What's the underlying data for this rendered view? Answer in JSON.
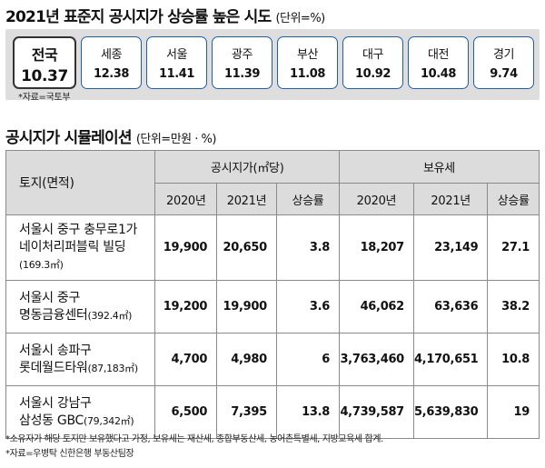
{
  "header": {
    "title": "2021년 표준지 공시지가 상승률 높은 시도",
    "unit": "(단위=%)",
    "source": "*자료=국토부"
  },
  "chart_data": [
    {
      "type": "table",
      "title": "2021년 표준지 공시지가 상승률 높은 시도",
      "unit": "%",
      "categories": [
        "전국",
        "세종",
        "서울",
        "광주",
        "부산",
        "대구",
        "대전",
        "경기"
      ],
      "values": [
        10.37,
        12.38,
        11.41,
        11.39,
        11.08,
        10.92,
        10.48,
        9.74
      ]
    },
    {
      "type": "table",
      "title": "공시지가 시뮬레이션",
      "unit": "(단위=만원 · %)",
      "columns": [
        "토지(면적)",
        "공시지가(㎡당) 2020년",
        "공시지가(㎡당) 2021년",
        "공시지가(㎡당) 상승률",
        "보유세 2020년",
        "보유세 2021년",
        "보유세 상승률"
      ],
      "rows": [
        [
          "서울시 중구 충무로1가 네이처리퍼블릭 빌딩(169.3㎡)",
          19900,
          20650,
          3.8,
          18207,
          23149,
          27.1
        ],
        [
          "서울시 중구 명동금융센터(392.4㎡)",
          19200,
          19900,
          3.6,
          46062,
          63636,
          38.2
        ],
        [
          "서울시 송파구 롯데월드타워(87,183㎡)",
          4700,
          4980,
          6,
          3763460,
          4170651,
          10.8
        ],
        [
          "서울시 강남구 삼성동 GBC(79,342㎡)",
          6500,
          7395,
          13.8,
          4739587,
          5639830,
          19
        ]
      ]
    }
  ],
  "cards": [
    {
      "name": "전국",
      "value": "10.37"
    },
    {
      "name": "세종",
      "value": "12.38"
    },
    {
      "name": "서울",
      "value": "11.41"
    },
    {
      "name": "광주",
      "value": "11.39"
    },
    {
      "name": "부산",
      "value": "11.08"
    },
    {
      "name": "대구",
      "value": "10.92"
    },
    {
      "name": "대전",
      "value": "10.48"
    },
    {
      "name": "경기",
      "value": "9.74"
    }
  ],
  "sim": {
    "title": "공시지가 시뮬레이션",
    "unit": "(단위=만원 · %)",
    "col_land": "토지(면적)",
    "group_price": "공시지가(㎡당)",
    "group_tax": "보유세",
    "sub": [
      "2020년",
      "2021년",
      "상승률",
      "2020년",
      "2021년",
      "상승률"
    ],
    "rows": [
      {
        "line1": "서울시 중구 충무로1가",
        "line2": "네이처리퍼블릭 빌딩",
        "area": "(169.3㎡)",
        "p2020": "19,900",
        "p2021": "20,650",
        "prate": "3.8",
        "t2020": "18,207",
        "t2021": "23,149",
        "trate": "27.1"
      },
      {
        "line1": "서울시 중구",
        "line2": "명동금융센터",
        "area": "(392.4㎡)",
        "p2020": "19,200",
        "p2021": "19,900",
        "prate": "3.6",
        "t2020": "46,062",
        "t2021": "63,636",
        "trate": "38.2"
      },
      {
        "line1": "서울시 송파구",
        "line2": "롯데월드타워",
        "area": "(87,183㎡)",
        "p2020": "4,700",
        "p2021": "4,980",
        "prate": "6",
        "t2020": "3,763,460",
        "t2021": "4,170,651",
        "trate": "10.8"
      },
      {
        "line1": "서울시 강남구",
        "line2": "삼성동 GBC",
        "area": "(79,342㎡)",
        "p2020": "6,500",
        "p2021": "7,395",
        "prate": "13.8",
        "t2020": "4,739,587",
        "t2021": "5,639,830",
        "trate": "19"
      }
    ]
  },
  "footnote": {
    "note": "*소유자가 해당 토지만 보유했다고 가정, 보유세는 재산세, 종합부동산세, 농어촌특별세, 지방교육세 합계.",
    "source": "*자료=우병탁 신한은행 부동산팀장"
  }
}
